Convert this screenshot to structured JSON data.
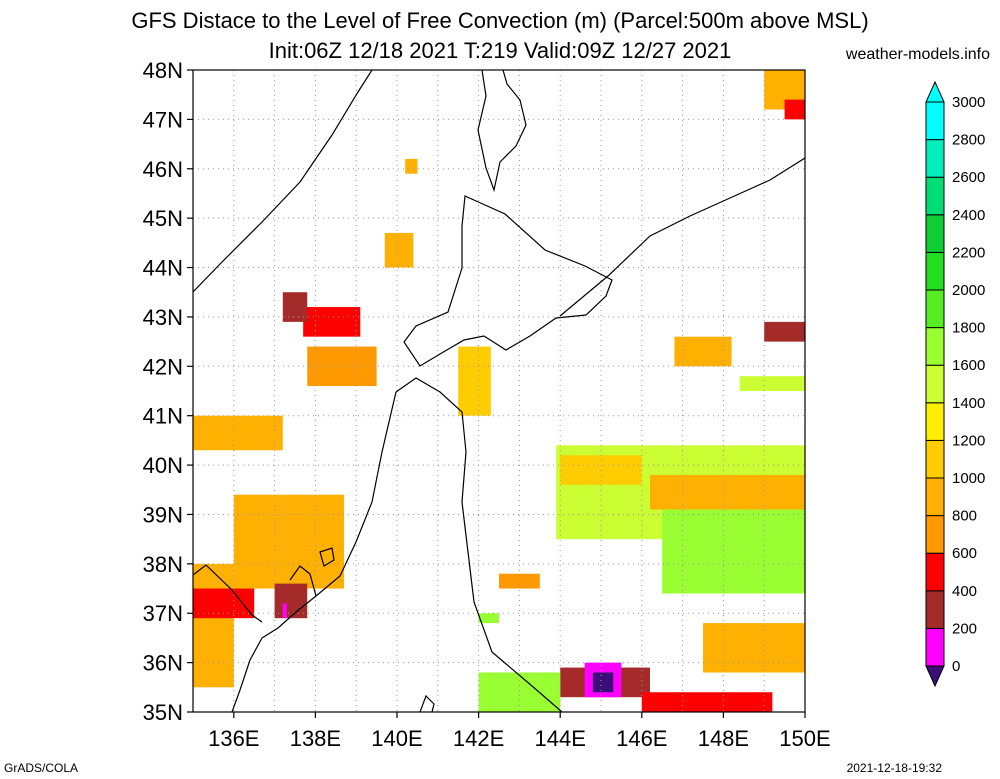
{
  "title_line1": "GFS Distace to the Level of Free Convection (m) (Parcel:500m above MSL)",
  "title_line2": "Init:06Z 12/18 2021 T:219 Valid:09Z 12/27 2021",
  "credit": "weather-models.info",
  "footer_left": "GrADS/COLA",
  "footer_right": "2021-12-18-19:32",
  "lat_labels": [
    "48N",
    "47N",
    "46N",
    "45N",
    "44N",
    "43N",
    "42N",
    "41N",
    "40N",
    "39N",
    "38N",
    "37N",
    "36N",
    "35N"
  ],
  "lon_labels": [
    "136E",
    "138E",
    "140E",
    "142E",
    "144E",
    "146E",
    "148E",
    "150E"
  ],
  "colorbar": {
    "ticks": [
      "0",
      "200",
      "400",
      "600",
      "800",
      "1000",
      "1200",
      "1400",
      "1600",
      "1800",
      "2000",
      "2200",
      "2400",
      "2600",
      "2800",
      "3000"
    ],
    "colors": [
      "#3c0f78",
      "#ff00ff",
      "#a52a2a",
      "#ff0000",
      "#ff9900",
      "#ffb000",
      "#ffcc00",
      "#ffee00",
      "#ccff33",
      "#99ff33",
      "#55ee22",
      "#22dd22",
      "#11cc33",
      "#00dd77",
      "#00eebb",
      "#00ffff"
    ]
  },
  "map_data": {
    "extent": {
      "lon": [
        135,
        150
      ],
      "lat": [
        35,
        48
      ]
    },
    "regions": [
      {
        "lon": [
          136.0,
          138.7
        ],
        "lat": [
          37.5,
          39.4
        ],
        "color": "#ffb000"
      },
      {
        "lon": [
          135.0,
          136.0
        ],
        "lat": [
          35.5,
          38.0
        ],
        "color": "#ffb000"
      },
      {
        "lon": [
          135.0,
          136.5
        ],
        "lat": [
          36.9,
          37.5
        ],
        "color": "#ff0000"
      },
      {
        "lon": [
          137.0,
          137.8
        ],
        "lat": [
          36.9,
          37.6
        ],
        "color": "#a52a2a"
      },
      {
        "lon": [
          137.2,
          137.3
        ],
        "lat": [
          36.9,
          37.2
        ],
        "color": "#ff00ff"
      },
      {
        "lon": [
          135.0,
          137.2
        ],
        "lat": [
          40.3,
          41.0
        ],
        "color": "#ffb000"
      },
      {
        "lon": [
          137.7,
          139.1
        ],
        "lat": [
          42.6,
          43.2
        ],
        "color": "#ff0000"
      },
      {
        "lon": [
          137.2,
          137.8
        ],
        "lat": [
          42.9,
          43.5
        ],
        "color": "#a52a2a"
      },
      {
        "lon": [
          137.8,
          139.5
        ],
        "lat": [
          41.6,
          42.4
        ],
        "color": "#ff9900"
      },
      {
        "lon": [
          139.7,
          140.4
        ],
        "lat": [
          44.0,
          44.7
        ],
        "color": "#ffb000"
      },
      {
        "lon": [
          141.5,
          142.3
        ],
        "lat": [
          41.0,
          42.4
        ],
        "color": "#ffcc00"
      },
      {
        "lon": [
          143.9,
          150.0
        ],
        "lat": [
          38.5,
          40.4
        ],
        "color": "#ccff33"
      },
      {
        "lon": [
          146.5,
          150.0
        ],
        "lat": [
          37.4,
          39.7
        ],
        "color": "#99ff33"
      },
      {
        "lon": [
          144.0,
          146.0
        ],
        "lat": [
          39.6,
          40.2
        ],
        "color": "#ffcc00"
      },
      {
        "lon": [
          146.2,
          150.0
        ],
        "lat": [
          39.1,
          39.8
        ],
        "color": "#ffb000"
      },
      {
        "lon": [
          147.5,
          150.0
        ],
        "lat": [
          35.8,
          36.8
        ],
        "color": "#ffb000"
      },
      {
        "lon": [
          144.0,
          146.2
        ],
        "lat": [
          35.3,
          35.9
        ],
        "color": "#a52a2a"
      },
      {
        "lon": [
          144.6,
          145.5
        ],
        "lat": [
          35.3,
          36.0
        ],
        "color": "#ff00ff"
      },
      {
        "lon": [
          144.8,
          145.3
        ],
        "lat": [
          35.4,
          35.8
        ],
        "color": "#3c0f78"
      },
      {
        "lon": [
          146.0,
          149.2
        ],
        "lat": [
          35.0,
          35.4
        ],
        "color": "#ff0000"
      },
      {
        "lon": [
          142.0,
          144.0
        ],
        "lat": [
          35.0,
          35.8
        ],
        "color": "#99ff33"
      },
      {
        "lon": [
          142.5,
          143.5
        ],
        "lat": [
          37.5,
          37.8
        ],
        "color": "#ff9900"
      },
      {
        "lon": [
          146.8,
          148.2
        ],
        "lat": [
          42.0,
          42.6
        ],
        "color": "#ffb000"
      },
      {
        "lon": [
          148.4,
          150.0
        ],
        "lat": [
          41.5,
          41.8
        ],
        "color": "#ccff33"
      },
      {
        "lon": [
          149.0,
          150.0
        ],
        "lat": [
          47.2,
          48.0
        ],
        "color": "#ffb000"
      },
      {
        "lon": [
          149.5,
          150.0
        ],
        "lat": [
          47.0,
          47.4
        ],
        "color": "#ff0000"
      },
      {
        "lon": [
          149.0,
          150.0
        ],
        "lat": [
          42.5,
          42.9
        ],
        "color": "#a52a2a"
      },
      {
        "lon": [
          142.0,
          142.5
        ],
        "lat": [
          36.8,
          37.0
        ],
        "color": "#99ff33"
      },
      {
        "lon": [
          140.2,
          140.5
        ],
        "lat": [
          45.9,
          46.2
        ],
        "color": "#ffb000"
      }
    ]
  }
}
